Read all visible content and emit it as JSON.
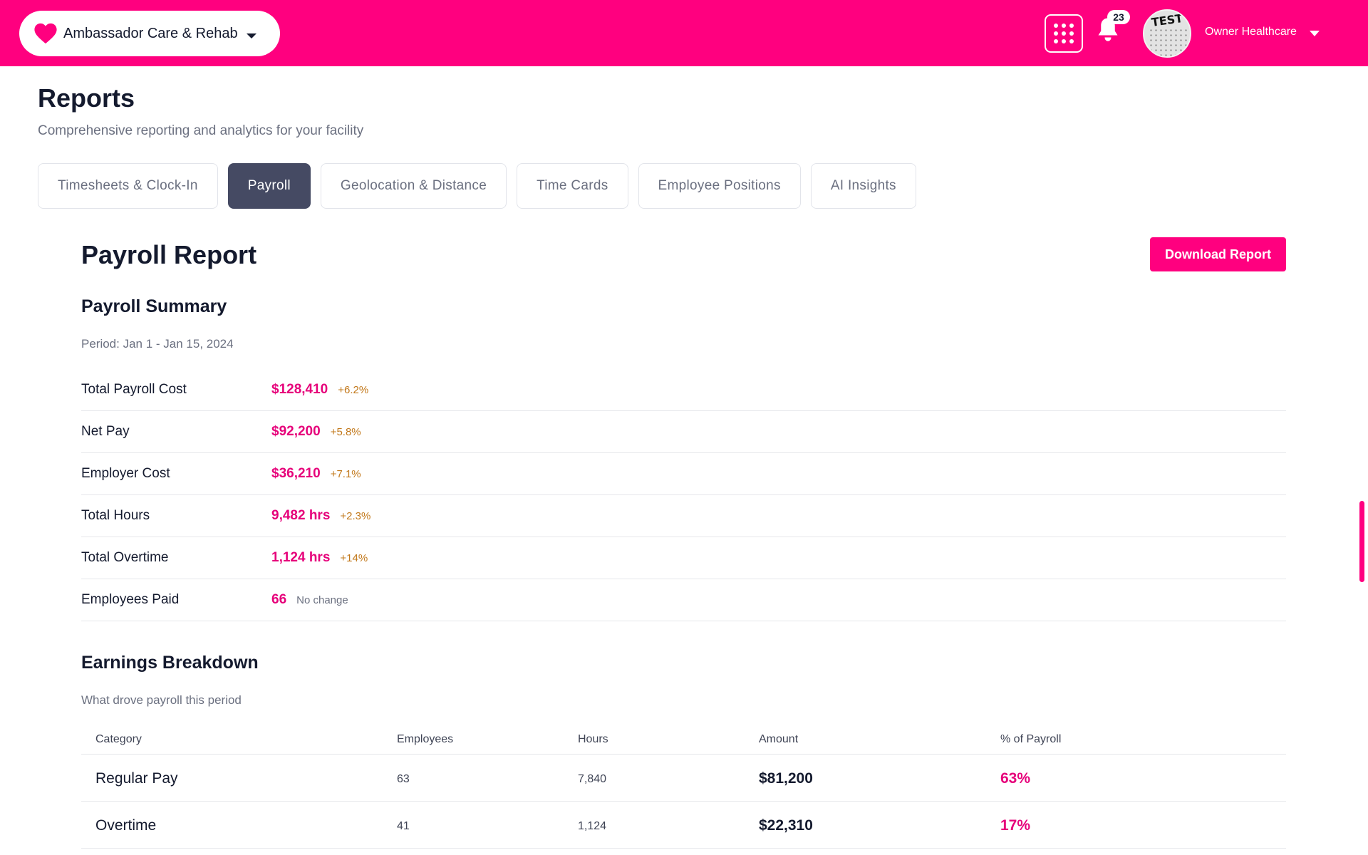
{
  "topbar": {
    "facility_name": "Ambassador Care & Rehab",
    "notification_count": "23",
    "avatar_text": "TEST",
    "user_name": "Owner Healthcare"
  },
  "page": {
    "title": "Reports",
    "subtitle": "Comprehensive reporting and analytics for your facility"
  },
  "tabs": [
    {
      "label": "Timesheets & Clock-In",
      "active": false
    },
    {
      "label": "Payroll",
      "active": true
    },
    {
      "label": "Geolocation & Distance",
      "active": false
    },
    {
      "label": "Time Cards",
      "active": false
    },
    {
      "label": "Employee Positions",
      "active": false
    },
    {
      "label": "AI Insights",
      "active": false
    }
  ],
  "report": {
    "title": "Payroll Report",
    "download_label": "Download Report",
    "summary": {
      "title": "Payroll Summary",
      "period": "Period: Jan 1 - Jan 15, 2024",
      "rows": [
        {
          "label": "Total Payroll Cost",
          "value": "$128,410",
          "change": "+6.2%"
        },
        {
          "label": "Net Pay",
          "value": "$92,200",
          "change": "+5.8%"
        },
        {
          "label": "Employer Cost",
          "value": "$36,210",
          "change": "+7.1%"
        },
        {
          "label": "Total Hours",
          "value": "9,482 hrs",
          "change": "+2.3%"
        },
        {
          "label": "Total Overtime",
          "value": "1,124 hrs",
          "change": "+14%"
        },
        {
          "label": "Employees Paid",
          "value": "66",
          "change": "No change"
        }
      ]
    },
    "earnings": {
      "title": "Earnings Breakdown",
      "subtitle": "What drove payroll this period",
      "columns": [
        "Category",
        "Employees",
        "Hours",
        "Amount",
        "% of Payroll"
      ],
      "rows": [
        {
          "category": "Regular Pay",
          "employees": "63",
          "hours": "7,840",
          "amount": "$81,200",
          "percent": "63%"
        },
        {
          "category": "Overtime",
          "employees": "41",
          "hours": "1,124",
          "amount": "$22,310",
          "percent": "17%"
        }
      ]
    }
  },
  "colors": {
    "brand": "#ff007f",
    "accent_text": "#e6007a",
    "change_text": "#c2781a",
    "active_tab": "#454a63"
  }
}
